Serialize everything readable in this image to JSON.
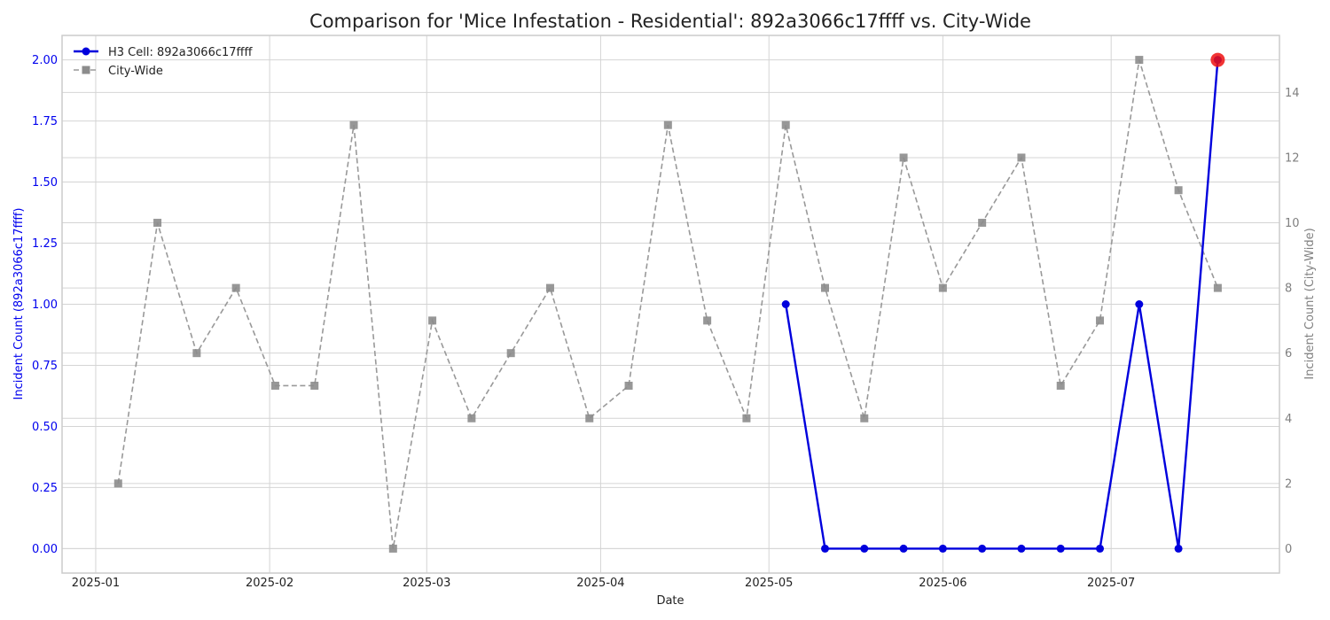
{
  "chart_data": {
    "type": "line",
    "title": "Comparison for 'Mice Infestation - Residential': 892a3066c17ffff vs. City-Wide",
    "xlabel": "Date",
    "ylabel_left": "Incident Count (892a3066c17ffff)",
    "ylabel_right": "Incident Count (City-Wide)",
    "grid": true,
    "legend_position": "top-left",
    "xlim": [
      "2024-12-26",
      "2025-07-31"
    ],
    "ylim_left": [
      -0.1,
      2.1
    ],
    "ylim_right": [
      -0.75,
      15.75
    ],
    "x_ticks": [
      "2025-01",
      "2025-02",
      "2025-03",
      "2025-04",
      "2025-05",
      "2025-06",
      "2025-07"
    ],
    "y_ticks_left": [
      "0.00",
      "0.25",
      "0.50",
      "0.75",
      "1.00",
      "1.25",
      "1.50",
      "1.75",
      "2.00"
    ],
    "y_ticks_right": [
      "0",
      "2",
      "4",
      "6",
      "8",
      "10",
      "12",
      "14"
    ],
    "series": [
      {
        "name": "H3 Cell: 892a3066c17ffff",
        "axis": "left",
        "color": "#0000dd",
        "style": "solid",
        "marker": "circle",
        "points": [
          {
            "date": "2025-05-04",
            "value": 1
          },
          {
            "date": "2025-05-11",
            "value": 0
          },
          {
            "date": "2025-05-18",
            "value": 0
          },
          {
            "date": "2025-05-25",
            "value": 0
          },
          {
            "date": "2025-06-01",
            "value": 0
          },
          {
            "date": "2025-06-08",
            "value": 0
          },
          {
            "date": "2025-06-15",
            "value": 0
          },
          {
            "date": "2025-06-22",
            "value": 0
          },
          {
            "date": "2025-06-29",
            "value": 0
          },
          {
            "date": "2025-07-06",
            "value": 1
          },
          {
            "date": "2025-07-13",
            "value": 0
          },
          {
            "date": "2025-07-20",
            "value": 2
          }
        ]
      },
      {
        "name": "City-Wide",
        "axis": "right",
        "color": "#999999",
        "style": "dashed",
        "marker": "square",
        "points": [
          {
            "date": "2025-01-05",
            "value": 2
          },
          {
            "date": "2025-01-12",
            "value": 10
          },
          {
            "date": "2025-01-19",
            "value": 6
          },
          {
            "date": "2025-01-26",
            "value": 8
          },
          {
            "date": "2025-02-02",
            "value": 5
          },
          {
            "date": "2025-02-09",
            "value": 5
          },
          {
            "date": "2025-02-16",
            "value": 13
          },
          {
            "date": "2025-02-23",
            "value": 0
          },
          {
            "date": "2025-03-02",
            "value": 7
          },
          {
            "date": "2025-03-09",
            "value": 4
          },
          {
            "date": "2025-03-16",
            "value": 6
          },
          {
            "date": "2025-03-23",
            "value": 8
          },
          {
            "date": "2025-03-30",
            "value": 4
          },
          {
            "date": "2025-04-06",
            "value": 5
          },
          {
            "date": "2025-04-13",
            "value": 13
          },
          {
            "date": "2025-04-20",
            "value": 7
          },
          {
            "date": "2025-04-27",
            "value": 4
          },
          {
            "date": "2025-05-04",
            "value": 13
          },
          {
            "date": "2025-05-11",
            "value": 8
          },
          {
            "date": "2025-05-18",
            "value": 4
          },
          {
            "date": "2025-05-25",
            "value": 12
          },
          {
            "date": "2025-06-01",
            "value": 8
          },
          {
            "date": "2025-06-08",
            "value": 10
          },
          {
            "date": "2025-06-15",
            "value": 12
          },
          {
            "date": "2025-06-22",
            "value": 5
          },
          {
            "date": "2025-06-29",
            "value": 7
          },
          {
            "date": "2025-07-06",
            "value": 15
          },
          {
            "date": "2025-07-13",
            "value": 11
          },
          {
            "date": "2025-07-20",
            "value": 8
          }
        ]
      }
    ],
    "highlight": {
      "series": "H3 Cell: 892a3066c17ffff",
      "date": "2025-07-20",
      "value": 2,
      "color": "#ee1111"
    }
  }
}
